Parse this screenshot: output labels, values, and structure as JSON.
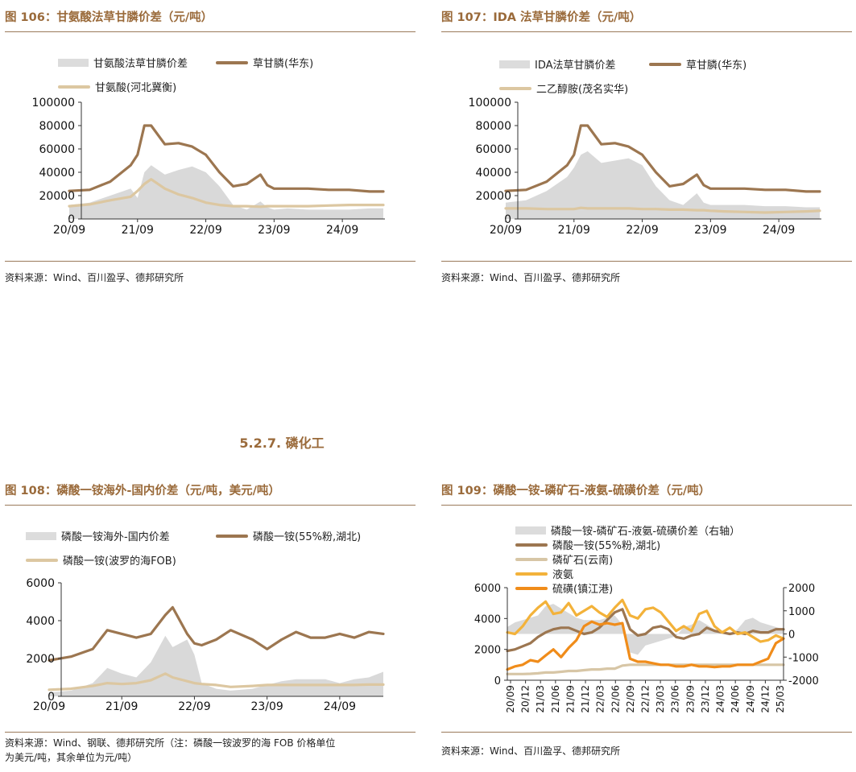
{
  "section": {
    "title": "5.2.7. 磷化工"
  },
  "charts": {
    "c106": {
      "title": "图 106：甘氨酸法草甘膦价差（元/吨）",
      "source": "资料来源：Wind、百川盈孚、德邦研究所",
      "legend": [
        "甘氨酸法草甘膦价差",
        "草甘膦(华东)",
        "甘氨酸(河北冀衡)"
      ],
      "colors": {
        "area": "#d9d9d9",
        "main": "#9c7650",
        "second": "#dcc7a1"
      }
    },
    "c107": {
      "title": "图 107：IDA 法草甘膦价差（元/吨）",
      "source": "资料来源：Wind、百川盈孚、德邦研究所",
      "legend": [
        "IDA法草甘膦价差",
        "草甘膦(华东)",
        "二乙醇胺(茂名实华)"
      ],
      "colors": {
        "area": "#d9d9d9",
        "main": "#9c7650",
        "second": "#dcc7a1"
      }
    },
    "c108": {
      "title": "图 108：磷酸一铵海外-国内价差（元/吨，美元/吨）",
      "source_line1": "资料来源：Wind、钢联、德邦研究所（注：磷酸一铵波罗的海 FOB 价格单位",
      "source_line2": "为美元/吨，其余单位为元/吨）",
      "legend": [
        "磷酸一铵海外-国内价差",
        "磷酸一铵(55%粉,湖北)",
        "磷酸一铵(波罗的海FOB)"
      ],
      "colors": {
        "area": "#d9d9d9",
        "main": "#9c7650",
        "second": "#dcc7a1"
      }
    },
    "c109": {
      "title": "图 109：磷酸一铵-磷矿石-液氨-硫磺价差（元/吨）",
      "source": "资料来源：Wind、百川盈孚、德邦研究所",
      "legend": [
        "磷酸一铵-磷矿石-液氨-硫磺价差（右轴）",
        "磷酸一铵(55%粉,湖北)",
        "磷矿石(云南)",
        "液氨",
        "硫磺(镇江港)"
      ],
      "colors": {
        "area": "#d9d9d9",
        "main": "#9c7650",
        "rock": "#d7c6a6",
        "ammonia": "#f3b23a",
        "sulfur": "#f08c1a"
      }
    }
  },
  "chart_data": [
    {
      "id": "c106",
      "type": "area+line",
      "title": "甘氨酸法草甘膦价差（元/吨）",
      "x_ticks": [
        "20/09",
        "21/09",
        "22/09",
        "23/09",
        "24/09"
      ],
      "ylim": [
        0,
        100000
      ],
      "y_ticks": [
        "0",
        "20000",
        "40000",
        "60000",
        "80000",
        "100000"
      ],
      "t": [
        0,
        0.3,
        0.6,
        0.9,
        1.0,
        1.1,
        1.2,
        1.4,
        1.6,
        1.8,
        2.0,
        2.2,
        2.4,
        2.6,
        2.8,
        2.9,
        3.0,
        3.2,
        3.5,
        3.8,
        4.1,
        4.4,
        4.6
      ],
      "series": [
        {
          "name": "甘氨酸法草甘膦价差",
          "kind": "area",
          "values": [
            12000,
            14000,
            20000,
            26000,
            18000,
            40000,
            46000,
            38000,
            42000,
            45000,
            40000,
            28000,
            12000,
            8000,
            15000,
            10000,
            8000,
            9000,
            8000,
            8000,
            8000,
            9000,
            9000
          ]
        },
        {
          "name": "草甘膦(华东)",
          "kind": "line",
          "values": [
            24000,
            25000,
            32000,
            46000,
            55000,
            80000,
            80000,
            64000,
            65000,
            62000,
            55000,
            40000,
            28000,
            30000,
            38000,
            29000,
            26000,
            26000,
            26000,
            25000,
            25000,
            23500,
            23500
          ]
        },
        {
          "name": "甘氨酸(河北冀衡)",
          "kind": "line",
          "values": [
            11000,
            12500,
            16000,
            19000,
            24000,
            30000,
            34000,
            26000,
            21000,
            18000,
            14000,
            12000,
            11000,
            11000,
            10500,
            11000,
            11000,
            11000,
            11000,
            11500,
            12000,
            12000,
            12000
          ]
        }
      ]
    },
    {
      "id": "c107",
      "type": "area+line",
      "title": "IDA 法草甘膦价差（元/吨）",
      "x_ticks": [
        "20/09",
        "21/09",
        "22/09",
        "23/09",
        "24/09"
      ],
      "ylim": [
        0,
        100000
      ],
      "y_ticks": [
        "0",
        "20000",
        "40000",
        "60000",
        "80000",
        "100000"
      ],
      "t": [
        0,
        0.3,
        0.6,
        0.9,
        1.0,
        1.1,
        1.2,
        1.4,
        1.6,
        1.8,
        2.0,
        2.2,
        2.4,
        2.6,
        2.8,
        2.9,
        3.0,
        3.2,
        3.5,
        3.8,
        4.1,
        4.4,
        4.6
      ],
      "series": [
        {
          "name": "IDA法草甘膦价差",
          "kind": "area",
          "values": [
            14000,
            16000,
            24000,
            36000,
            44000,
            55000,
            58000,
            48000,
            50000,
            52000,
            46000,
            28000,
            16000,
            12000,
            22000,
            14000,
            12000,
            12000,
            12000,
            11000,
            11000,
            10000,
            10000
          ]
        },
        {
          "name": "草甘膦(华东)",
          "kind": "line",
          "values": [
            24000,
            25000,
            32000,
            46000,
            55000,
            80000,
            80000,
            64000,
            65000,
            62000,
            55000,
            40000,
            28000,
            30000,
            38000,
            29000,
            26000,
            26000,
            26000,
            25000,
            25000,
            23500,
            23500
          ]
        },
        {
          "name": "二乙醇胺(茂名实华)",
          "kind": "line",
          "values": [
            9000,
            9000,
            8500,
            8500,
            8500,
            9500,
            9000,
            9000,
            9000,
            9000,
            8500,
            8500,
            8000,
            8000,
            7500,
            7500,
            7000,
            6500,
            6000,
            5500,
            6000,
            6500,
            7000
          ]
        }
      ]
    },
    {
      "id": "c108",
      "type": "area+line",
      "title": "磷酸一铵海外-国内价差（元/吨，美元/吨）",
      "x_ticks": [
        "20/09",
        "21/09",
        "22/09",
        "23/09",
        "24/09"
      ],
      "ylim": [
        0,
        6000
      ],
      "y_ticks": [
        "0",
        "2000",
        "4000",
        "6000"
      ],
      "t": [
        0,
        0.3,
        0.6,
        0.8,
        1.0,
        1.2,
        1.4,
        1.6,
        1.7,
        1.9,
        2.0,
        2.1,
        2.3,
        2.5,
        2.8,
        3.0,
        3.2,
        3.4,
        3.6,
        3.8,
        4.0,
        4.2,
        4.4,
        4.6
      ],
      "series": [
        {
          "name": "磷酸一铵海外-国内价差",
          "kind": "area",
          "values": [
            200,
            300,
            700,
            1500,
            1200,
            1000,
            1800,
            3200,
            2600,
            3000,
            2200,
            700,
            400,
            300,
            400,
            600,
            800,
            900,
            900,
            900,
            700,
            900,
            1000,
            1300
          ]
        },
        {
          "name": "磷酸一铵(55%粉,湖北)",
          "kind": "line",
          "values": [
            1900,
            2100,
            2500,
            3500,
            3300,
            3100,
            3300,
            4300,
            4700,
            3300,
            2800,
            2700,
            3000,
            3500,
            3000,
            2500,
            3000,
            3400,
            3100,
            3100,
            3300,
            3100,
            3400,
            3300
          ]
        },
        {
          "name": "磷酸一铵(波罗的海FOB)",
          "kind": "line",
          "values": [
            350,
            400,
            550,
            700,
            650,
            700,
            850,
            1200,
            1000,
            800,
            700,
            650,
            600,
            500,
            550,
            600,
            600,
            600,
            600,
            600,
            600,
            600,
            620,
            620
          ]
        }
      ]
    },
    {
      "id": "c109",
      "type": "area+line-dual-axis",
      "title": "磷酸一铵-磷矿石-液氨-硫磺价差（元/吨）",
      "x_ticks": [
        "20/09",
        "20/12",
        "21/03",
        "21/06",
        "21/09",
        "21/12",
        "22/03",
        "22/06",
        "22/09",
        "22/12",
        "23/03",
        "23/06",
        "23/09",
        "23/12",
        "24/03",
        "24/06",
        "24/09",
        "24/12",
        "25/03"
      ],
      "ylim_left": [
        0,
        6000
      ],
      "y_ticks_left": [
        "0",
        "2000",
        "4000",
        "6000"
      ],
      "ylim_right": [
        -2000,
        2000
      ],
      "y_ticks_right": [
        "-2000",
        "-1000",
        "0",
        "1000",
        "2000"
      ],
      "t": [
        0,
        0.5,
        1,
        1.5,
        2,
        2.5,
        3,
        3.5,
        4,
        4.5,
        5,
        5.5,
        6,
        6.5,
        7,
        7.5,
        8,
        8.5,
        9,
        9.5,
        10,
        10.5,
        11,
        11.5,
        12,
        12.5,
        13,
        13.5,
        14,
        14.5,
        15,
        15.5,
        16,
        16.5,
        17,
        17.5,
        18
      ],
      "series": [
        {
          "name": "磷酸一铵-磷矿石-液氨-硫磺价差（右轴）",
          "kind": "area",
          "axis": "right",
          "values": [
            300,
            500,
            600,
            700,
            800,
            1200,
            1300,
            1100,
            900,
            700,
            600,
            600,
            600,
            700,
            800,
            400,
            -800,
            -900,
            -500,
            -400,
            -300,
            -200,
            -100,
            300,
            400,
            600,
            400,
            200,
            100,
            0,
            200,
            600,
            700,
            500,
            400,
            300,
            200
          ]
        },
        {
          "name": "磷酸一铵(55%粉,湖北)",
          "kind": "line",
          "axis": "left",
          "values": [
            1900,
            2000,
            2200,
            2400,
            2800,
            3100,
            3300,
            3400,
            3400,
            3200,
            3000,
            3100,
            3400,
            3900,
            4400,
            4600,
            3300,
            2900,
            3000,
            3400,
            3500,
            3300,
            2800,
            2700,
            2900,
            3000,
            3400,
            3200,
            3100,
            3000,
            3100,
            3000,
            3200,
            3100,
            3100,
            3300,
            3300
          ]
        },
        {
          "name": "磷矿石(云南)",
          "kind": "line",
          "axis": "left",
          "values": [
            400,
            400,
            400,
            420,
            450,
            500,
            500,
            550,
            600,
            600,
            650,
            700,
            700,
            750,
            750,
            950,
            1000,
            1000,
            1000,
            1000,
            1000,
            1000,
            1000,
            1000,
            1000,
            1000,
            1000,
            1000,
            1000,
            1000,
            1000,
            1000,
            1000,
            1000,
            1000,
            1000,
            1000
          ]
        },
        {
          "name": "液氨",
          "kind": "line",
          "axis": "left",
          "values": [
            3100,
            3000,
            3500,
            4200,
            4700,
            5100,
            4300,
            4400,
            5000,
            4200,
            4500,
            4800,
            4400,
            4100,
            4700,
            5200,
            4200,
            4000,
            4600,
            4700,
            4400,
            3800,
            3200,
            3500,
            3200,
            4300,
            4500,
            3500,
            3100,
            3400,
            3000,
            3100,
            2800,
            2500,
            2600,
            2900,
            2700
          ]
        },
        {
          "name": "硫磺(镇江港)",
          "kind": "line",
          "axis": "left",
          "values": [
            700,
            900,
            1000,
            1300,
            1200,
            1600,
            2000,
            1500,
            2100,
            2600,
            3500,
            3800,
            3600,
            3700,
            3600,
            3700,
            1400,
            1200,
            1200,
            1100,
            1000,
            1000,
            900,
            900,
            1000,
            900,
            900,
            850,
            900,
            900,
            1000,
            1000,
            1000,
            1200,
            1400,
            2400,
            2700
          ]
        }
      ]
    }
  ]
}
